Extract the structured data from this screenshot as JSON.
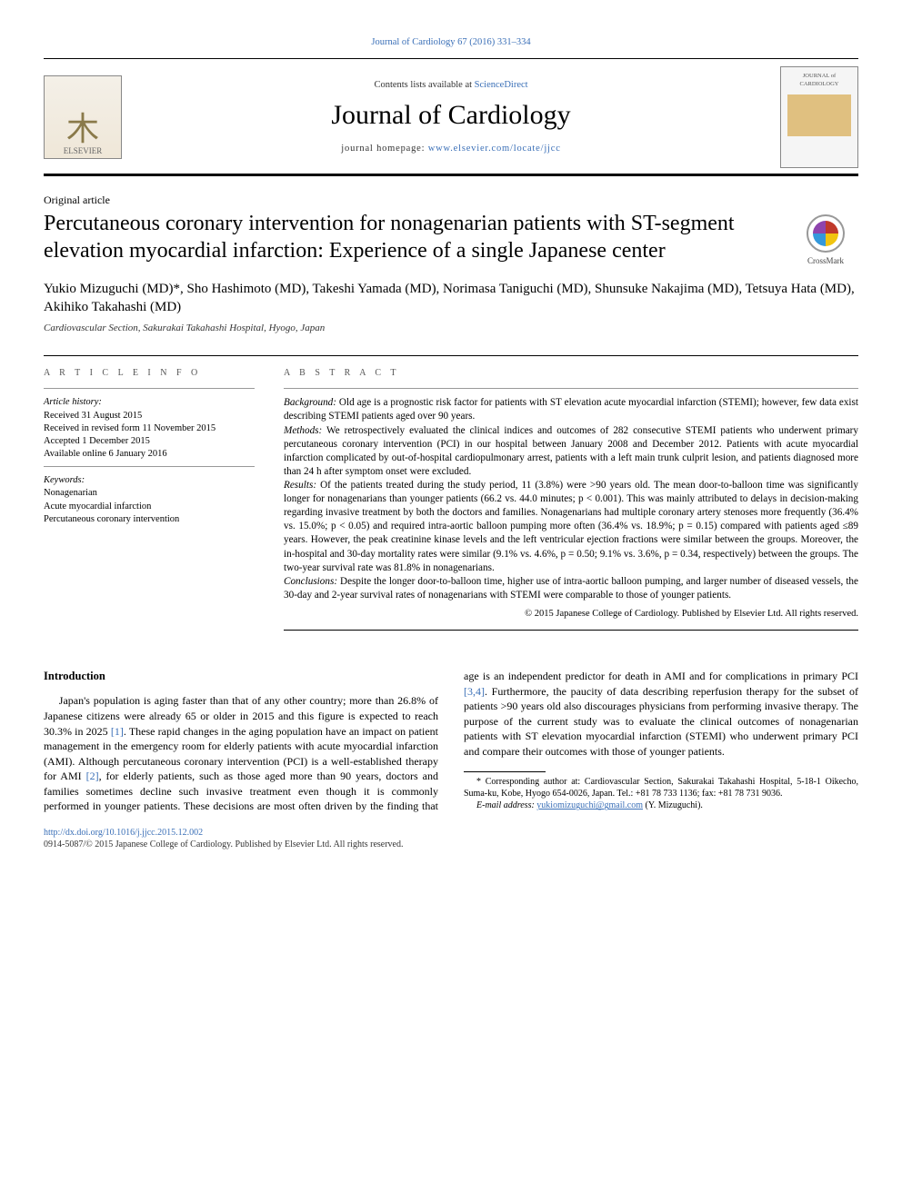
{
  "citation": {
    "journal": "Journal of Cardiology",
    "vol_pages": "67 (2016) 331–334"
  },
  "masthead": {
    "contents_prefix": "Contents lists available at ",
    "contents_link": "ScienceDirect",
    "journal_name": "Journal of Cardiology",
    "homepage_prefix": "journal homepage: ",
    "homepage_url": "www.elsevier.com/locate/jjcc",
    "elsevier_label": "ELSEVIER",
    "cover_label_1": "JOURNAL of",
    "cover_label_2": "CARDIOLOGY"
  },
  "article_type": "Original article",
  "title": "Percutaneous coronary intervention for nonagenarian patients with ST-segment elevation myocardial infarction: Experience of a single Japanese center",
  "crossmark_label": "CrossMark",
  "authors_line": "Yukio Mizuguchi (MD)*, Sho Hashimoto (MD), Takeshi Yamada (MD), Norimasa Taniguchi (MD), Shunsuke Nakajima (MD), Tetsuya Hata (MD), Akihiko Takahashi (MD)",
  "affiliation": "Cardiovascular Section, Sakurakai Takahashi Hospital, Hyogo, Japan",
  "info": {
    "head": "A R T I C L E   I N F O",
    "history_label": "Article history:",
    "received": "Received 31 August 2015",
    "revised": "Received in revised form 11 November 2015",
    "accepted": "Accepted 1 December 2015",
    "online": "Available online 6 January 2016",
    "keywords_label": "Keywords:",
    "kw1": "Nonagenarian",
    "kw2": "Acute myocardial infarction",
    "kw3": "Percutaneous coronary intervention"
  },
  "abstract": {
    "head": "A B S T R A C T",
    "background_label": "Background:",
    "background": " Old age is a prognostic risk factor for patients with ST elevation acute myocardial infarction (STEMI); however, few data exist describing STEMI patients aged over 90 years.",
    "methods_label": "Methods:",
    "methods": " We retrospectively evaluated the clinical indices and outcomes of 282 consecutive STEMI patients who underwent primary percutaneous coronary intervention (PCI) in our hospital between January 2008 and December 2012. Patients with acute myocardial infarction complicated by out-of-hospital cardiopulmonary arrest, patients with a left main trunk culprit lesion, and patients diagnosed more than 24 h after symptom onset were excluded.",
    "results_label": "Results:",
    "results": " Of the patients treated during the study period, 11 (3.8%) were >90 years old. The mean door-to-balloon time was significantly longer for nonagenarians than younger patients (66.2 vs. 44.0 minutes; p < 0.001). This was mainly attributed to delays in decision-making regarding invasive treatment by both the doctors and families. Nonagenarians had multiple coronary artery stenoses more frequently (36.4% vs. 15.0%; p < 0.05) and required intra-aortic balloon pumping more often (36.4% vs. 18.9%; p = 0.15) compared with patients aged ≤89 years. However, the peak creatinine kinase levels and the left ventricular ejection fractions were similar between the groups. Moreover, the in-hospital and 30-day mortality rates were similar (9.1% vs. 4.6%, p = 0.50; 9.1% vs. 3.6%, p = 0.34, respectively) between the groups. The two-year survival rate was 81.8% in nonagenarians.",
    "conclusions_label": "Conclusions:",
    "conclusions": " Despite the longer door-to-balloon time, higher use of intra-aortic balloon pumping, and larger number of diseased vessels, the 30-day and 2-year survival rates of nonagenarians with STEMI were comparable to those of younger patients.",
    "copyright": "© 2015 Japanese College of Cardiology. Published by Elsevier Ltd. All rights reserved."
  },
  "body": {
    "intro_head": "Introduction",
    "para1_a": "Japan's population is aging faster than that of any other country; more than 26.8% of Japanese citizens were already 65 or older in 2015 and this figure is expected to reach 30.3% in 2025 ",
    "ref1": "[1]",
    "para1_b": ". These rapid changes in the aging population have an impact on patient management in the emergency room for elderly patients with acute myocardial infarction (AMI). Although percutaneous coronary intervention (PCI) is a well-established therapy for AMI ",
    "ref2": "[2]",
    "para1_c": ", for elderly patients, such as those aged more than 90 years, doctors and families sometimes decline such invasive treatment even though it is commonly performed in younger patients. These decisions are most often driven by the finding that age is an independent predictor for death in AMI and for complications in primary PCI ",
    "ref34": "[3,4]",
    "para1_d": ". Furthermore, the paucity of data describing reperfusion therapy for the subset of patients >90 years old also discourages physicians from performing invasive therapy. The purpose of the current study was to evaluate the clinical outcomes of nonagenarian patients with ST elevation myocardial infarction (STEMI) who underwent primary PCI and compare their outcomes with those of younger patients."
  },
  "footnote": {
    "corr": "* Corresponding author at: Cardiovascular Section, Sakurakai Takahashi Hospital, 5-18-1 Oikecho, Suma-ku, Kobe, Hyogo 654-0026, Japan. Tel.: +81 78 733 1136; fax: +81 78 731 9036.",
    "email_label": "E-mail address: ",
    "email": "yukiomizuguchi@gmail.com",
    "email_suffix": " (Y. Mizuguchi)."
  },
  "doi": {
    "url": "http://dx.doi.org/10.1016/j.jjcc.2015.12.002",
    "line2": "0914-5087/© 2015 Japanese College of Cardiology. Published by Elsevier Ltd. All rights reserved."
  },
  "colors": {
    "link": "#3a6fb7",
    "text": "#000000",
    "rule": "#000000"
  }
}
